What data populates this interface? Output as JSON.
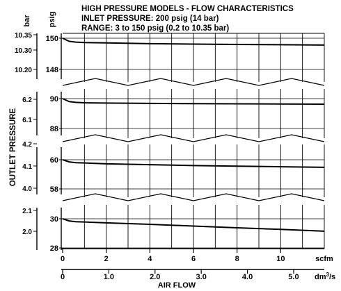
{
  "title_lines": [
    "HIGH PRESSURE MODELS - FLOW CHARACTERISTICS",
    "INLET PRESSURE: 200 psig (14 bar)",
    "RANGE: 3 to 150 psig (0.2 to 10.35 bar)"
  ],
  "chart_data": {
    "type": "line",
    "title": "HIGH PRESSURE MODELS - FLOW CHARACTERISTICS",
    "ylabel": "OUTLET PRESSURE",
    "xlabel": "AIR FLOW",
    "left_axis_unit": "bar",
    "right_axis_unit": "psig",
    "x_primary": {
      "unit": "scfm",
      "ticks": [
        0,
        2,
        4,
        6,
        8,
        10
      ],
      "tick_labels": [
        "0",
        "2",
        "4",
        "6",
        "8",
        "10"
      ],
      "range": [
        0,
        12
      ]
    },
    "x_secondary": {
      "unit_base": "dm",
      "unit_sup": "3",
      "unit_tail": "/s",
      "ticks": [
        0,
        1.0,
        2.0,
        3.0,
        4.0,
        5.0
      ],
      "tick_labels": [
        "0",
        "1.0",
        "2.0",
        "3.0",
        "4.0",
        "5.0"
      ]
    },
    "grid": true,
    "panels": [
      {
        "psig_range": [
          148,
          150
        ],
        "psig_ticks": [
          {
            "value": 150,
            "label": "150"
          },
          {
            "value": 148,
            "label": "148"
          }
        ],
        "bar_ticks": [
          {
            "value": 10.35,
            "label": "10.35"
          },
          {
            "value": 10.3,
            "label": "10.30"
          },
          {
            "value": 10.2,
            "label": "10.20"
          }
        ],
        "curve": {
          "x": [
            0,
            0.3,
            0.6,
            1,
            2,
            4,
            6,
            8,
            10,
            12
          ],
          "y": [
            150,
            149.8,
            149.75,
            149.72,
            149.7,
            149.65,
            149.62,
            149.6,
            149.58,
            149.56
          ]
        }
      },
      {
        "psig_range": [
          88,
          90
        ],
        "psig_ticks": [
          {
            "value": 90,
            "label": "90"
          },
          {
            "value": 88,
            "label": "88"
          }
        ],
        "bar_ticks": [
          {
            "value": 6.2,
            "label": "6.2"
          },
          {
            "value": 6.1,
            "label": "6.1"
          }
        ],
        "curve": {
          "x": [
            0,
            0.3,
            0.6,
            1,
            2,
            4,
            6,
            8,
            10,
            12
          ],
          "y": [
            90,
            89.8,
            89.75,
            89.72,
            89.7,
            89.68,
            89.66,
            89.65,
            89.64,
            89.63
          ]
        }
      },
      {
        "psig_range": [
          58,
          60
        ],
        "psig_ticks": [
          {
            "value": 60,
            "label": "60"
          },
          {
            "value": 58,
            "label": "58"
          }
        ],
        "bar_ticks": [
          {
            "value": 4.2,
            "label": "4.2"
          },
          {
            "value": 4.1,
            "label": "4.1"
          },
          {
            "value": 4.0,
            "label": "4.0"
          }
        ],
        "curve": {
          "x": [
            0,
            0.3,
            0.6,
            1,
            2,
            4,
            6,
            8,
            10,
            12
          ],
          "y": [
            60,
            59.85,
            59.8,
            59.78,
            59.72,
            59.66,
            59.6,
            59.56,
            59.52,
            59.48
          ]
        }
      },
      {
        "psig_range": [
          28,
          30
        ],
        "psig_ticks": [
          {
            "value": 30,
            "label": "30"
          },
          {
            "value": 28,
            "label": "28"
          }
        ],
        "bar_ticks": [
          {
            "value": 2.1,
            "label": "2.1"
          },
          {
            "value": 2.0,
            "label": "2.0"
          }
        ],
        "curve": {
          "x": [
            0,
            0.3,
            0.6,
            1,
            2,
            4,
            6,
            8,
            10,
            12
          ],
          "y": [
            30,
            29.85,
            29.8,
            29.78,
            29.72,
            29.62,
            29.5,
            29.38,
            29.27,
            29.15
          ]
        }
      }
    ]
  }
}
